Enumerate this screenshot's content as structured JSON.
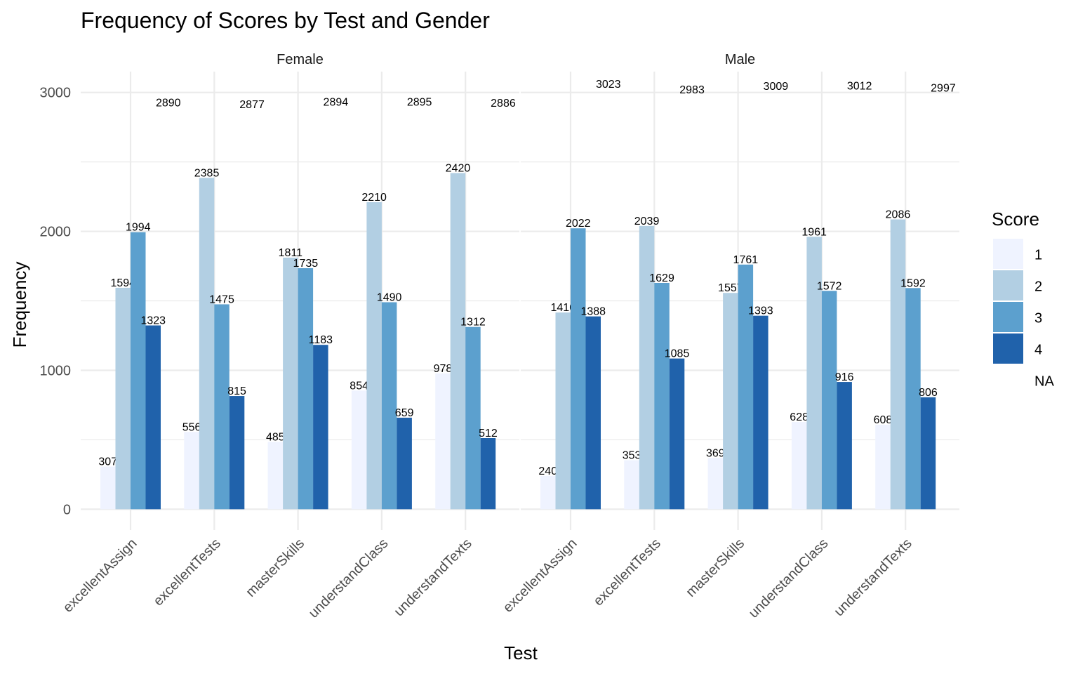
{
  "colors": {
    "1": "#eff3ff",
    "2": "#b2cfe3",
    "3": "#5ca0ce",
    "4": "#2062ab",
    "grid": "#ebebeb",
    "background": "#ffffff"
  },
  "chart_data": {
    "type": "bar",
    "title": "Frequency of Scores by Test and Gender",
    "xlabel": "Test",
    "ylabel": "Frequency",
    "ylim": [
      -150,
      3150
    ],
    "yticks": [
      0,
      1000,
      2000,
      3000
    ],
    "grid": true,
    "legend": {
      "title": "Score",
      "placement": "right",
      "entries": [
        "1",
        "2",
        "3",
        "4",
        "NA"
      ]
    },
    "categories": [
      "excellentAssign",
      "excellentTests",
      "masterSkills",
      "understandClass",
      "understandTexts"
    ],
    "facets": [
      {
        "name": "Female",
        "series": [
          {
            "name": "1",
            "values": [
              307,
              556,
              485,
              854,
              978
            ]
          },
          {
            "name": "2",
            "values": [
              1594,
              2385,
              1811,
              2210,
              2420
            ]
          },
          {
            "name": "3",
            "values": [
              1994,
              1475,
              1735,
              1490,
              1312
            ]
          },
          {
            "name": "4",
            "values": [
              1323,
              815,
              1183,
              659,
              512
            ]
          },
          {
            "name": "NA",
            "values": [
              2890,
              2877,
              2894,
              2895,
              2886
            ]
          }
        ]
      },
      {
        "name": "Male",
        "series": [
          {
            "name": "1",
            "values": [
              240,
              353,
              369,
              628,
              608
            ]
          },
          {
            "name": "2",
            "values": [
              1416,
              2039,
              1557,
              1961,
              2086
            ]
          },
          {
            "name": "3",
            "values": [
              2022,
              1629,
              1761,
              1572,
              1592
            ]
          },
          {
            "name": "4",
            "values": [
              1388,
              1085,
              1393,
              916,
              806
            ]
          },
          {
            "name": "NA",
            "values": [
              3023,
              2983,
              3009,
              3012,
              2997
            ]
          }
        ]
      }
    ]
  }
}
